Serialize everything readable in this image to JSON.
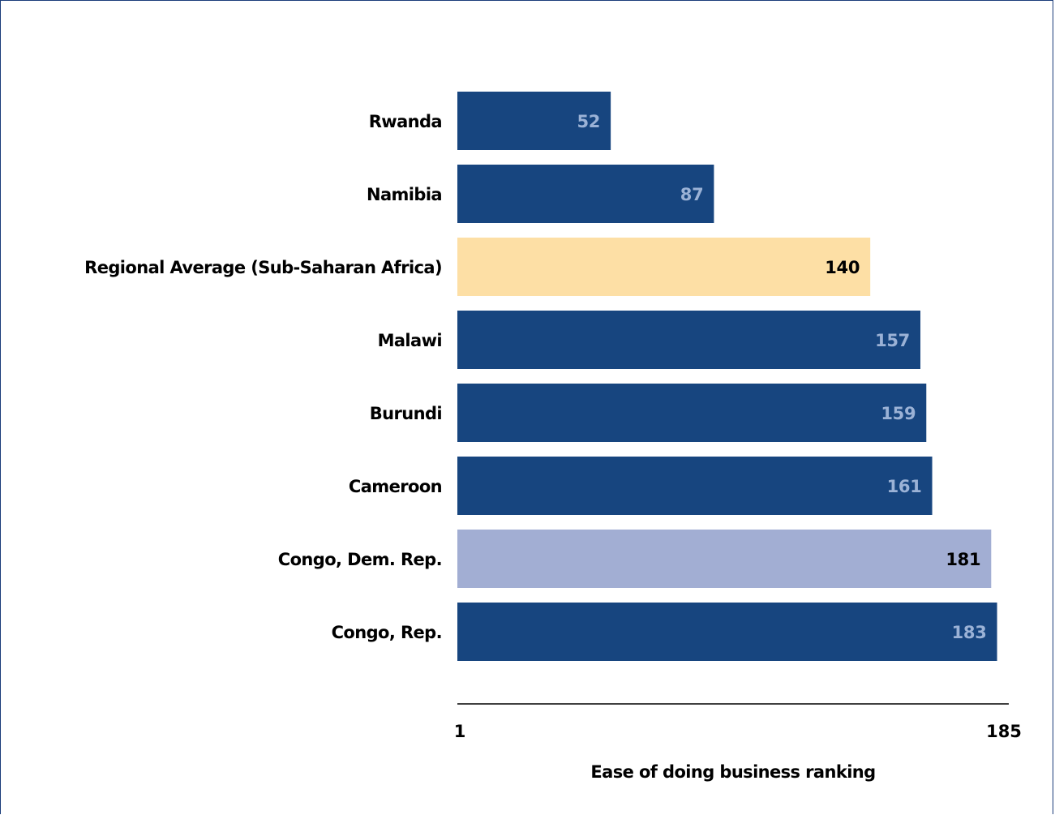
{
  "chart_data": {
    "type": "bar",
    "orientation": "horizontal",
    "title": "",
    "xlabel": "Ease of doing business ranking",
    "ylabel": "",
    "xlim": [
      1,
      185
    ],
    "x_ticks": [
      "1",
      "185"
    ],
    "grid": false,
    "legend": "none",
    "categories": [
      "Rwanda",
      "Namibia",
      "Regional Average (Sub-Saharan Africa)",
      "Malawi",
      "Burundi",
      "Cameroon",
      "Congo, Dem. Rep.",
      "Congo, Rep."
    ],
    "values": [
      52,
      87,
      140,
      157,
      159,
      161,
      181,
      183
    ],
    "bar_colors": [
      "#17457f",
      "#17457f",
      "#fddfa5",
      "#17457f",
      "#17457f",
      "#17457f",
      "#a2aed3",
      "#17457f"
    ],
    "value_label_colors": [
      "#9bb2d6",
      "#9bb2d6",
      "#000000",
      "#9bb2d6",
      "#9bb2d6",
      "#9bb2d6",
      "#000000",
      "#9bb2d6"
    ]
  },
  "colors": {
    "border": "#1c3d7a",
    "axis_line": "#000000"
  }
}
